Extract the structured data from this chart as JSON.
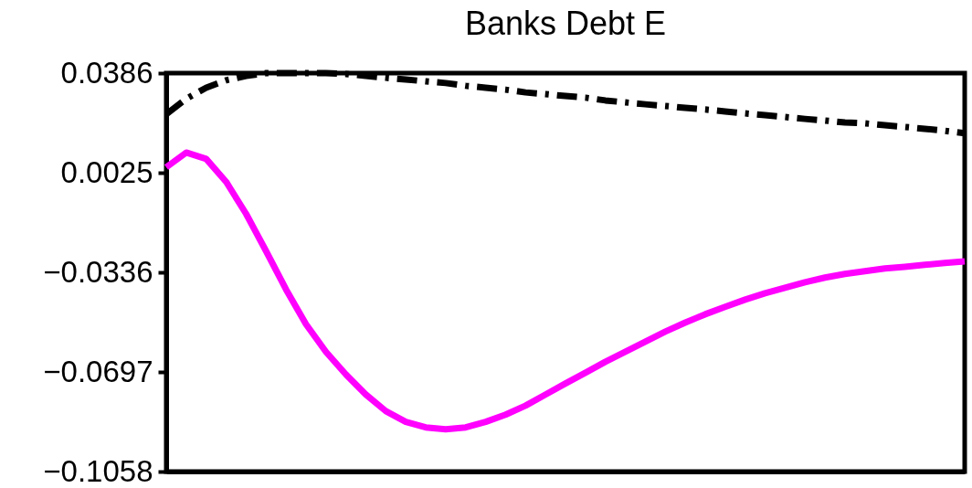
{
  "chart_data": {
    "type": "line",
    "title": "Banks Debt E",
    "categories": [
      null,
      null,
      null,
      null,
      null,
      null,
      null,
      null,
      null,
      null,
      null,
      null,
      null,
      null,
      null,
      null,
      null,
      null,
      null,
      null,
      null,
      null,
      null,
      null,
      null,
      null,
      null,
      null,
      null,
      null,
      null,
      null,
      null,
      null,
      null,
      null,
      null,
      null,
      null,
      null,
      null
    ],
    "series": [
      {
        "color": "#ff00ff",
        "line_style": "solid",
        "values": [
          0.0045,
          0.0098,
          0.0075,
          -0.0008,
          -0.0124,
          -0.0259,
          -0.0398,
          -0.0524,
          -0.0624,
          -0.0706,
          -0.0779,
          -0.0839,
          -0.0878,
          -0.0898,
          -0.0905,
          -0.0898,
          -0.0878,
          -0.0852,
          -0.0819,
          -0.0779,
          -0.0739,
          -0.07,
          -0.066,
          -0.0624,
          -0.0587,
          -0.0551,
          -0.0518,
          -0.0488,
          -0.0461,
          -0.0435,
          -0.0412,
          -0.0392,
          -0.0372,
          -0.0355,
          -0.0342,
          -0.0332,
          -0.0322,
          -0.0316,
          -0.0309,
          -0.0302,
          -0.0296
        ]
      },
      {
        "color": "#000000",
        "line_style": "dashed",
        "values": [
          0.0237,
          0.0293,
          0.0333,
          0.036,
          0.0376,
          0.0386,
          0.0386,
          0.0386,
          0.0386,
          0.0383,
          0.0376,
          0.0369,
          0.0363,
          0.0356,
          0.035,
          0.034,
          0.0333,
          0.0326,
          0.0316,
          0.031,
          0.0303,
          0.0297,
          0.0287,
          0.028,
          0.0273,
          0.0267,
          0.026,
          0.0254,
          0.0247,
          0.024,
          0.0234,
          0.0227,
          0.022,
          0.0214,
          0.0207,
          0.0204,
          0.0197,
          0.0191,
          0.0184,
          0.0177,
          0.0168
        ]
      }
    ],
    "ylim": [
      -0.1058,
      0.0386
    ],
    "yticks": [
      0.0386,
      0.0025,
      {
        "value": -0.0336,
        "label": "−0.0336"
      },
      {
        "value": -0.0697,
        "label": "−0.0697"
      },
      {
        "value": -0.1058,
        "label": "−0.1058"
      }
    ],
    "tick_labels": "y",
    "grid": false,
    "marker": "none"
  }
}
